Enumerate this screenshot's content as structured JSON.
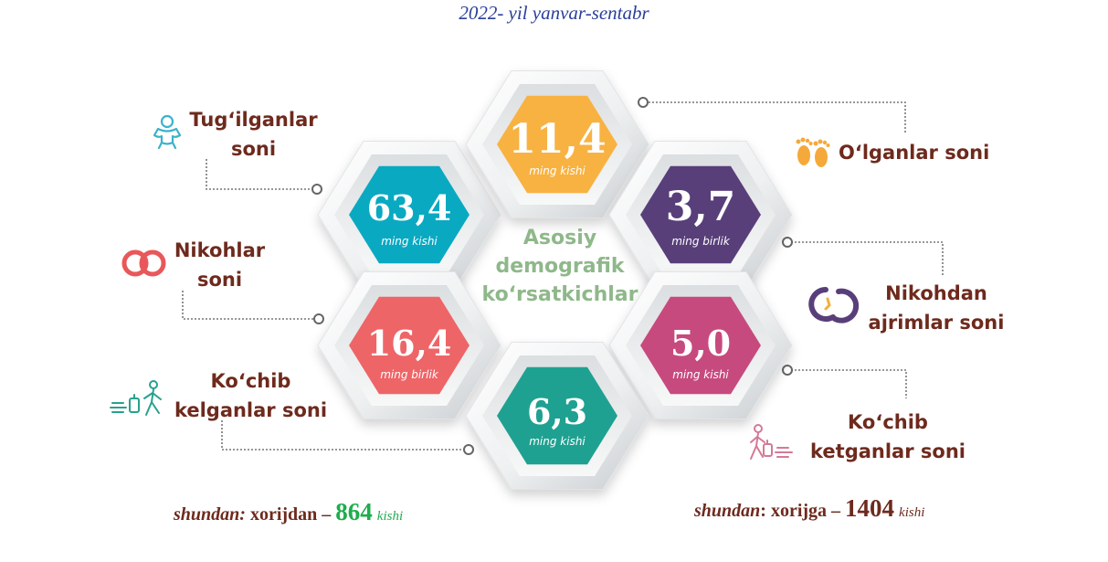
{
  "header": {
    "title": "2022- yil yanvar-sentabr"
  },
  "center": {
    "title": "Asosiy demografik ko‘rsatkichlar"
  },
  "colors": {
    "teal": "#0aa9c2",
    "orange": "#f8b241",
    "purple": "#583f7a",
    "coral": "#ee6567",
    "pink": "#c74a7f",
    "green": "#1fa191",
    "label_text": "#6e2a1d",
    "center_text": "#8fb88a",
    "header_text": "#2a3f9b",
    "highlight_green": "#1fad4c"
  },
  "indicators": [
    {
      "key": "births",
      "value": "63,4",
      "unit": "ming kishi",
      "label": "Tug‘ilganlar soni",
      "icon": "baby-icon"
    },
    {
      "key": "deaths",
      "value": "11,4",
      "unit": "ming kishi",
      "label": "O‘lganlar soni",
      "icon": "footprints-icon"
    },
    {
      "key": "divorces",
      "value": "3,7",
      "unit": "ming birlik",
      "label": "Nikohdan ajrimlar soni",
      "icon": "broken-rings-icon"
    },
    {
      "key": "marriages",
      "value": "16,4",
      "unit": "ming birlik",
      "label": "Nikohlar soni",
      "icon": "wedding-rings-icon"
    },
    {
      "key": "emigrants",
      "value": "5,0",
      "unit": "ming kishi",
      "label": "Ko‘chib ketganlar soni",
      "icon": "traveler-leaving-icon"
    },
    {
      "key": "immigrants",
      "value": "6,3",
      "unit": "ming kishi",
      "label": "Ko‘chib kelganlar soni",
      "icon": "traveler-arriving-icon"
    }
  ],
  "footer_left": {
    "prefix": "shundan:",
    "text": "xorijdan –",
    "value": "864",
    "unit": "kishi"
  },
  "footer_right": {
    "prefix": "shundan",
    "text": ": xorijga –",
    "value": "1404",
    "unit": "kishi"
  }
}
